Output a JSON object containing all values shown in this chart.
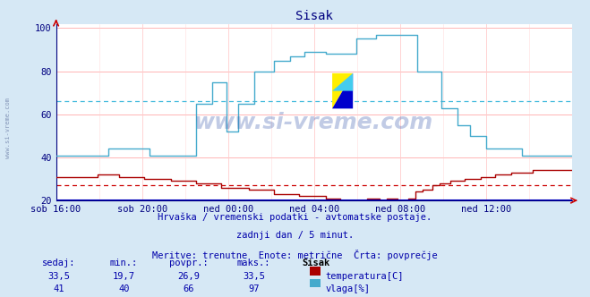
{
  "title": "Sisak",
  "title_color": "#000080",
  "bg_color": "#d6e8f5",
  "plot_bg_color": "#ffffff",
  "grid_color_h": "#ffaaaa",
  "grid_color_v": "#ffcccc",
  "x_labels": [
    "sob 16:00",
    "sob 20:00",
    "ned 00:00",
    "ned 04:00",
    "ned 08:00",
    "ned 12:00"
  ],
  "x_label_color": "#000080",
  "y_min": 20,
  "y_max": 100,
  "y_ticks": [
    20,
    40,
    60,
    80,
    100
  ],
  "temp_color": "#aa0000",
  "vlaga_color": "#44aacc",
  "temp_avg_line": 26.9,
  "vlaga_avg_line": 66,
  "temp_avg_color": "#cc0000",
  "vlaga_avg_color": "#44bbdd",
  "watermark": "www.si-vreme.com",
  "watermark_color": "#3355aa",
  "watermark_alpha": 0.3,
  "footer_line1": "Hrvaška / vremenski podatki - avtomatske postaje.",
  "footer_line2": "zadnji dan / 5 minut.",
  "footer_line3": "Meritve: trenutne  Enote: metrične  Črta: povprečje",
  "footer_color": "#0000aa",
  "legend_title": "Sisak",
  "label_sedaj": "sedaj:",
  "label_min": "min.:",
  "label_povpr": "povpr.:",
  "label_maks": "maks.:",
  "label_color": "#0000aa",
  "temp_sedaj": "33,5",
  "temp_min": "19,7",
  "temp_povpr": "26,9",
  "temp_maks": "33,5",
  "vlaga_sedaj": "41",
  "vlaga_min": "40",
  "vlaga_povpr": "66",
  "vlaga_maks": "97",
  "value_color": "#0000aa",
  "n_points": 288,
  "axis_color": "#000080",
  "baseline_color": "#0000bb",
  "arrow_color": "#cc0000"
}
